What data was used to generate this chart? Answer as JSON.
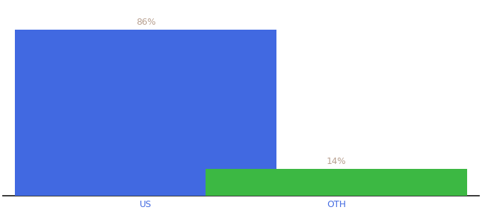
{
  "categories": [
    "US",
    "OTH"
  ],
  "values": [
    86,
    14
  ],
  "bar_colors": [
    "#4169e1",
    "#3cb843"
  ],
  "label_color": "#b8a090",
  "label_fontsize": 9,
  "tick_fontsize": 9,
  "tick_color": "#4169e1",
  "background_color": "#ffffff",
  "bar_width": 0.55,
  "x_positions": [
    0.3,
    0.7
  ],
  "xlim": [
    0.0,
    1.0
  ],
  "ylim": [
    0,
    100
  ],
  "annotations": [
    "86%",
    "14%"
  ]
}
